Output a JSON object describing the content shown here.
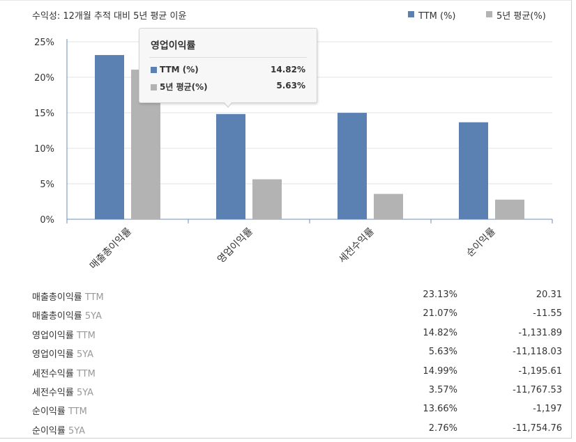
{
  "chart_data": {
    "type": "bar",
    "title": "수익성: 12개월 추적 대비 5년 평균 이윤",
    "categories": [
      "매출총이익률",
      "영업이익률",
      "세전수익률",
      "순이익률"
    ],
    "series": [
      {
        "name": "TTM (%)",
        "color": "#5b80b2",
        "values": [
          23.13,
          14.82,
          14.99,
          13.66
        ]
      },
      {
        "name": "5년 평균(%)",
        "color": "#b3b3b3",
        "values": [
          21.07,
          5.63,
          3.57,
          2.76
        ]
      }
    ],
    "ylim": [
      0,
      25
    ],
    "yticks": [
      0,
      5,
      10,
      15,
      20,
      25
    ],
    "ytick_labels": [
      "0%",
      "5%",
      "10%",
      "15%",
      "20%",
      "25%"
    ],
    "grid": true,
    "legend_position": "top-right"
  },
  "tooltip": {
    "title": "영업이익률",
    "rows": [
      {
        "label": "TTM (%)",
        "value": "14.82%",
        "color": "#5b80b2"
      },
      {
        "label": "5년 평균(%)",
        "value": "5.63%",
        "color": "#b3b3b3"
      }
    ]
  },
  "table": {
    "rows": [
      {
        "label": "매출총이익률",
        "suffix": "TTM",
        "pct": "23.13%",
        "change": "20.31"
      },
      {
        "label": "매출총이익률",
        "suffix": "5YA",
        "pct": "21.07%",
        "change": "-11.55"
      },
      {
        "label": "영업이익률",
        "suffix": "TTM",
        "pct": "14.82%",
        "change": "-1,131.89"
      },
      {
        "label": "영업이익률",
        "suffix": "5YA",
        "pct": "5.63%",
        "change": "-11,118.03"
      },
      {
        "label": "세전수익률",
        "suffix": "TTM",
        "pct": "14.99%",
        "change": "-1,195.61"
      },
      {
        "label": "세전수익률",
        "suffix": "5YA",
        "pct": "3.57%",
        "change": "-11,767.53"
      },
      {
        "label": "순이익률",
        "suffix": "TTM",
        "pct": "13.66%",
        "change": "-1,197"
      },
      {
        "label": "순이익률",
        "suffix": "5YA",
        "pct": "2.76%",
        "change": "-11,754.76"
      }
    ]
  }
}
